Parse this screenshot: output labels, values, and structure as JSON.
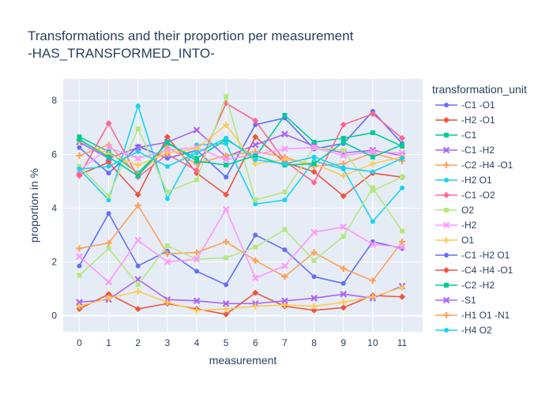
{
  "chart_data": {
    "type": "line",
    "title_line1": "Transformations and their proportion per measurement",
    "title_line2": "-HAS_TRANSFORMED_INTO-",
    "xlabel": "measurement",
    "ylabel": "proportion in %",
    "xlim": [
      -0.55,
      11.7
    ],
    "ylim": [
      -0.6,
      8.8
    ],
    "x": [
      0,
      1,
      2,
      3,
      4,
      5,
      6,
      7,
      8,
      9,
      10,
      11
    ],
    "x_ticks": [
      0,
      1,
      2,
      3,
      4,
      5,
      6,
      7,
      8,
      9,
      10,
      11
    ],
    "y_ticks": [
      0,
      2,
      4,
      6,
      8
    ],
    "grid": true,
    "legend_title": "transformation_unit",
    "legend_position": "right",
    "series": [
      {
        "name": "-C1 -O1",
        "color": "#636efa",
        "marker": "circle",
        "values": [
          6.25,
          5.3,
          6.3,
          5.85,
          6.15,
          5.15,
          7.1,
          7.35,
          6.2,
          6.4,
          7.6,
          6.4
        ]
      },
      {
        "name": "-H2 -O1",
        "color": "#ef553b",
        "marker": "diamond",
        "values": [
          5.25,
          5.7,
          4.5,
          6.65,
          5.3,
          4.5,
          6.65,
          5.7,
          5.35,
          4.45,
          5.3,
          5.15
        ]
      },
      {
        "name": "-C1",
        "color": "#00cc96",
        "marker": "square",
        "values": [
          6.65,
          6.1,
          5.3,
          6.4,
          5.85,
          6.55,
          5.9,
          7.45,
          6.45,
          6.6,
          6.8,
          6.3
        ]
      },
      {
        "name": "-C1 -H2",
        "color": "#ab63fa",
        "marker": "x",
        "values": [
          6.45,
          5.85,
          6.25,
          6.45,
          6.9,
          5.9,
          6.35,
          6.75,
          6.3,
          6.05,
          6.15,
          5.95
        ]
      },
      {
        "name": "-C2 -H4 -O1",
        "color": "#ffa15a",
        "marker": "cross",
        "values": [
          5.95,
          6.35,
          5.25,
          6.25,
          5.65,
          5.95,
          6.1,
          5.9,
          5.55,
          5.65,
          6.05,
          5.75
        ]
      },
      {
        "name": "-H2 O1",
        "color": "#19d3f3",
        "marker": "circle",
        "values": [
          5.45,
          4.3,
          7.8,
          4.35,
          6.35,
          6.4,
          4.15,
          4.3,
          5.75,
          5.45,
          3.5,
          4.75
        ]
      },
      {
        "name": "-C1 -O2",
        "color": "#ff6692",
        "marker": "diamond",
        "values": [
          5.2,
          7.15,
          5.15,
          6.0,
          5.4,
          7.9,
          7.25,
          5.75,
          4.95,
          7.1,
          7.5,
          6.6
        ]
      },
      {
        "name": "O2",
        "color": "#b6e880",
        "marker": "square",
        "values": [
          5.55,
          4.45,
          6.95,
          4.6,
          5.05,
          8.15,
          4.3,
          4.6,
          6.25,
          6.15,
          4.65,
          5.15
        ]
      },
      {
        "name": "-H2",
        "color": "#ff97ff",
        "marker": "x",
        "values": [
          5.4,
          6.25,
          5.85,
          6.15,
          6.25,
          5.8,
          6.0,
          6.2,
          6.25,
          5.95,
          6.1,
          6.05
        ]
      },
      {
        "name": "O1",
        "color": "#fecb52",
        "marker": "cross",
        "values": [
          6.5,
          6.0,
          5.6,
          6.05,
          6.2,
          7.1,
          5.65,
          5.8,
          5.65,
          5.2,
          5.65,
          5.9
        ]
      },
      {
        "name": "-C1 -H2 O1",
        "color": "#636efa",
        "marker": "circle",
        "values": [
          1.85,
          3.8,
          1.85,
          2.4,
          1.65,
          1.15,
          3.0,
          2.45,
          1.45,
          1.2,
          2.75,
          2.5
        ]
      },
      {
        "name": "-C4 -H4 -O1",
        "color": "#ef553b",
        "marker": "diamond",
        "values": [
          0.25,
          0.8,
          0.25,
          0.45,
          0.25,
          0.05,
          0.85,
          0.35,
          0.2,
          0.3,
          0.75,
          0.7
        ]
      },
      {
        "name": "-C2 -H2",
        "color": "#00cc96",
        "marker": "square",
        "values": [
          6.55,
          5.9,
          5.2,
          6.45,
          5.75,
          5.6,
          5.95,
          5.6,
          5.65,
          6.45,
          5.9,
          6.35
        ]
      },
      {
        "name": "-S1",
        "color": "#ab63fa",
        "marker": "x",
        "values": [
          0.5,
          0.6,
          1.35,
          0.6,
          0.55,
          0.45,
          0.45,
          0.55,
          0.65,
          0.8,
          0.65,
          1.1
        ]
      },
      {
        "name": "-H1 O1 -N1",
        "color": "#ffa15a",
        "marker": "cross",
        "values": [
          2.5,
          2.7,
          4.1,
          2.3,
          2.35,
          2.75,
          2.05,
          1.45,
          2.35,
          1.75,
          1.3,
          2.75
        ]
      },
      {
        "name": "-H4 O2",
        "color": "#19d3f3",
        "marker": "circle",
        "values": [
          5.45,
          5.55,
          6.1,
          5.55,
          6.05,
          6.6,
          5.8,
          5.65,
          5.9,
          5.5,
          5.35,
          5.85
        ]
      },
      {
        "name": "",
        "color": "#b6e880",
        "marker": "square",
        "values": [
          1.5,
          2.5,
          1.15,
          2.6,
          2.1,
          2.15,
          2.55,
          3.2,
          2.05,
          2.95,
          4.75,
          3.15
        ]
      },
      {
        "name": "",
        "color": "#ff97ff",
        "marker": "x",
        "values": [
          2.2,
          1.25,
          2.8,
          2.0,
          2.1,
          3.95,
          1.4,
          1.85,
          3.1,
          3.3,
          2.65,
          2.55
        ]
      },
      {
        "name": "",
        "color": "#fecb52",
        "marker": "cross",
        "values": [
          0.35,
          0.65,
          0.9,
          0.5,
          0.2,
          0.25,
          0.35,
          0.4,
          0.35,
          0.5,
          0.7,
          1.05
        ]
      }
    ],
    "legend_visible_count": 16
  }
}
